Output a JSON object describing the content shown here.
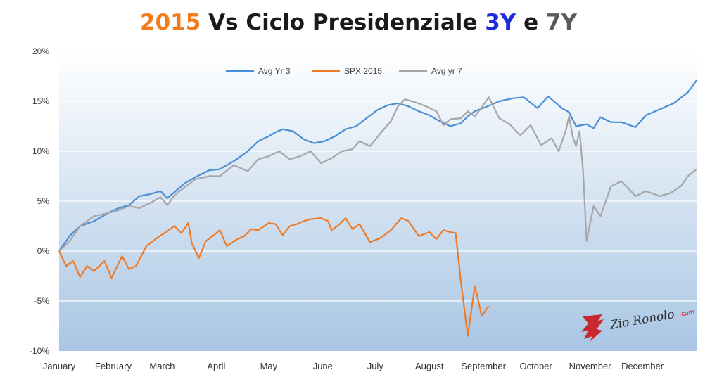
{
  "title": {
    "parts": [
      {
        "text": "2015",
        "color": "#f07d1a"
      },
      {
        "text": " Vs Ciclo Presidenziale ",
        "color": "#1a1a1a"
      },
      {
        "text": "3Y",
        "color": "#1d2cd6"
      },
      {
        "text": " e ",
        "color": "#1a1a1a"
      },
      {
        "text": "7Y",
        "color": "#5a5a5a"
      }
    ]
  },
  "watermark": {
    "text": "Zio Ronolo",
    "suffix": ".com"
  },
  "chart_data": {
    "type": "line",
    "x_axis": {
      "min": 0,
      "max": 365,
      "tick_labels": [
        "January",
        "February",
        "March",
        "April",
        "May",
        "June",
        "July",
        "August",
        "September",
        "October",
        "November",
        "December"
      ],
      "tick_days": [
        0,
        31,
        59,
        90,
        120,
        151,
        181,
        212,
        243,
        273,
        304,
        334
      ]
    },
    "y_axis": {
      "min": -10,
      "max": 20,
      "ticks": [
        -10,
        -5,
        0,
        5,
        10,
        15,
        20
      ],
      "tick_labels": [
        "-10%",
        "-5%",
        "0%",
        "5%",
        "10%",
        "15%",
        "20%"
      ]
    },
    "grid": true,
    "legend": {
      "position": "top-center"
    },
    "background": {
      "top": "#ffffff",
      "bottom": "#a9c6e4"
    },
    "series": [
      {
        "name": "Avg Yr 3",
        "color": "#4a8fd4",
        "x": [
          0,
          6,
          12,
          20,
          28,
          34,
          40,
          46,
          52,
          58,
          62,
          66,
          72,
          78,
          86,
          92,
          100,
          108,
          114,
          120,
          124,
          128,
          134,
          140,
          146,
          152,
          158,
          164,
          170,
          176,
          182,
          188,
          194,
          200,
          206,
          212,
          218,
          224,
          230,
          234,
          238,
          244,
          252,
          260,
          266,
          274,
          280,
          288,
          292,
          296,
          302,
          306,
          310,
          316,
          322,
          330,
          336,
          344,
          352,
          360,
          365
        ],
        "y": [
          0,
          1.5,
          2.5,
          3,
          3.8,
          4.3,
          4.6,
          5.5,
          5.7,
          6,
          5.3,
          5.9,
          6.8,
          7.4,
          8.1,
          8.2,
          9,
          10,
          11,
          11.5,
          11.9,
          12.2,
          12,
          11.2,
          10.8,
          11,
          11.5,
          12.2,
          12.5,
          13.3,
          14.1,
          14.6,
          14.8,
          14.5,
          14,
          13.6,
          13,
          12.5,
          12.8,
          13.5,
          14,
          14.4,
          15,
          15.3,
          15.4,
          14.3,
          15.5,
          14.3,
          13.9,
          12.5,
          12.7,
          12.3,
          13.4,
          12.9,
          12.9,
          12.4,
          13.6,
          14.2,
          14.8,
          15.9,
          17.1
        ]
      },
      {
        "name": "SPX 2015",
        "color": "#ef7a26",
        "x": [
          0,
          4,
          8,
          12,
          16,
          20,
          26,
          30,
          36,
          40,
          44,
          50,
          56,
          62,
          66,
          70,
          74,
          76,
          80,
          84,
          88,
          92,
          96,
          102,
          106,
          110,
          114,
          120,
          124,
          128,
          132,
          136,
          140,
          144,
          150,
          154,
          156,
          160,
          164,
          168,
          172,
          178,
          184,
          190,
          196,
          200,
          206,
          212,
          216,
          220,
          224,
          227,
          230,
          234,
          238,
          242,
          246
        ],
        "y": [
          0,
          -1.5,
          -1,
          -2.6,
          -1.5,
          -2,
          -1,
          -2.7,
          -0.5,
          -1.8,
          -1.5,
          0.5,
          1.3,
          2,
          2.5,
          1.8,
          2.8,
          0.8,
          -0.7,
          1,
          1.5,
          2.1,
          0.5,
          1.2,
          1.5,
          2.2,
          2.1,
          2.8,
          2.7,
          1.6,
          2.5,
          2.7,
          3,
          3.2,
          3.3,
          3,
          2.1,
          2.6,
          3.3,
          2.2,
          2.7,
          0.9,
          1.3,
          2.1,
          3.3,
          3,
          1.5,
          1.9,
          1.2,
          2.1,
          1.9,
          1.8,
          -3,
          -8.5,
          -3.5,
          -6.5,
          -5.5
        ]
      },
      {
        "name": "Avg yr 7",
        "color": "#a6a6a6",
        "x": [
          0,
          6,
          12,
          20,
          28,
          34,
          40,
          46,
          52,
          58,
          62,
          66,
          72,
          78,
          86,
          92,
          100,
          108,
          114,
          120,
          126,
          132,
          138,
          144,
          150,
          156,
          162,
          168,
          172,
          178,
          184,
          190,
          194,
          198,
          204,
          210,
          216,
          220,
          224,
          230,
          234,
          238,
          242,
          246,
          252,
          258,
          264,
          270,
          276,
          282,
          286,
          290,
          292,
          294,
          296,
          298,
          300,
          302,
          306,
          310,
          316,
          322,
          330,
          336,
          344,
          350,
          356,
          360,
          365
        ],
        "y": [
          0,
          1,
          2.5,
          3.5,
          3.8,
          4.1,
          4.5,
          4.3,
          4.8,
          5.4,
          4.6,
          5.6,
          6.4,
          7.2,
          7.5,
          7.5,
          8.6,
          8,
          9.2,
          9.5,
          10,
          9.2,
          9.5,
          10,
          8.8,
          9.3,
          10,
          10.2,
          11,
          10.5,
          11.8,
          13,
          14.5,
          15.2,
          14.9,
          14.5,
          14,
          12.6,
          13.2,
          13.3,
          14,
          13.5,
          14.4,
          15.4,
          13.3,
          12.7,
          11.6,
          12.6,
          10.6,
          11.3,
          10,
          12,
          13.5,
          11.5,
          10.5,
          12,
          8,
          1,
          4.5,
          3.5,
          6.5,
          7,
          5.5,
          6,
          5.5,
          5.8,
          6.5,
          7.5,
          8.2
        ]
      }
    ]
  }
}
